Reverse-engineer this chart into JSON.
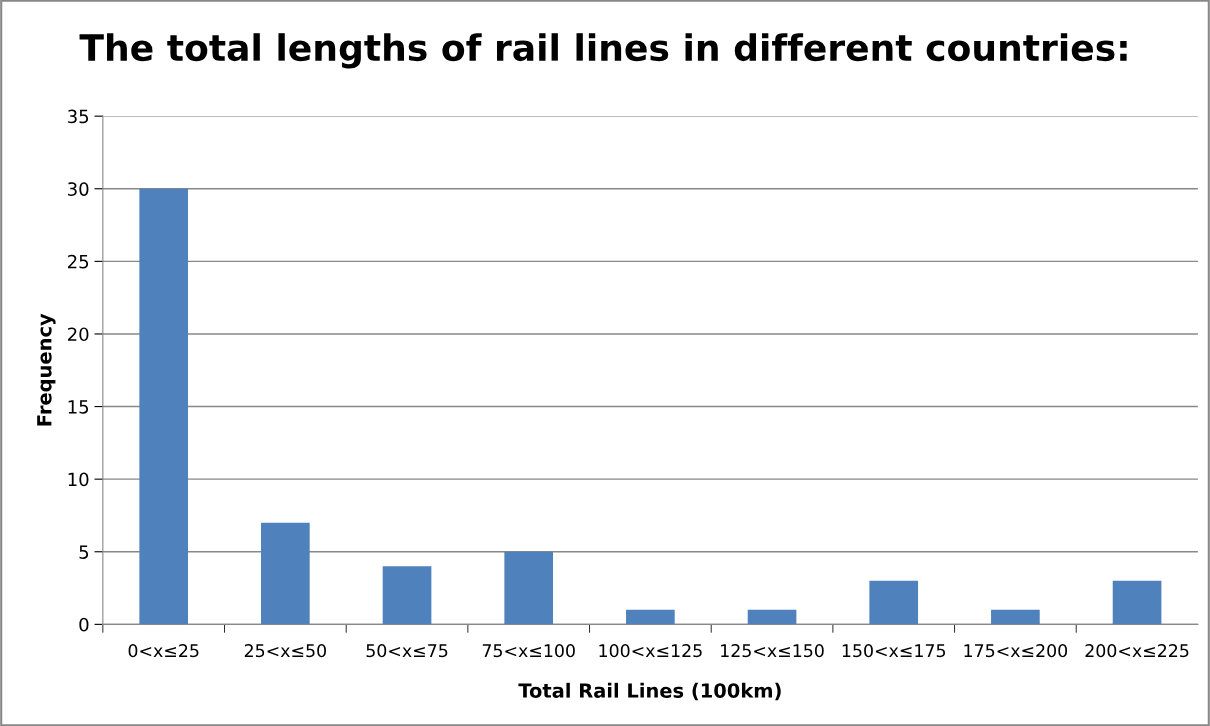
{
  "chart_data": {
    "type": "bar",
    "title": "The total lengths of rail lines in different countries:",
    "xlabel": "Total Rail Lines (100km)",
    "ylabel": "Frequency",
    "categories": [
      "0<x≤25",
      "25<x≤50",
      "50<x≤75",
      "75<x≤100",
      "100<x≤125",
      "125<x≤150",
      "150<x≤175",
      "175<x≤200",
      "200<x≤225"
    ],
    "values": [
      30,
      7,
      4,
      5,
      1,
      1,
      3,
      1,
      3
    ],
    "color": "#4f81bd",
    "ylim": [
      0,
      35
    ],
    "yticks": [
      0,
      5,
      10,
      15,
      20,
      25,
      30,
      35
    ],
    "grid": "y",
    "legend": false
  }
}
